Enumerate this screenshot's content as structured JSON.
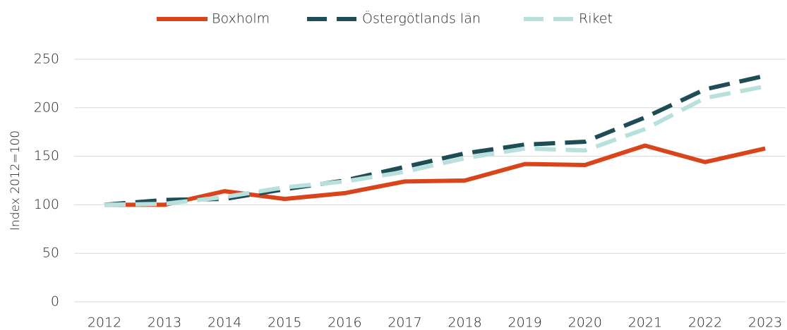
{
  "chart_data": {
    "type": "line",
    "ylabel": "Index 2012=100",
    "categories": [
      "2012",
      "2013",
      "2014",
      "2015",
      "2016",
      "2017",
      "2018",
      "2019",
      "2020",
      "2021",
      "2022",
      "2023"
    ],
    "series": [
      {
        "name": "Boxholm",
        "color": "#d9441a",
        "dash": "solid",
        "values": [
          100,
          100,
          114,
          106,
          112,
          124,
          125,
          142,
          141,
          161,
          144,
          158
        ]
      },
      {
        "name": "Östergötlands län",
        "color": "#1e4d55",
        "dash": "dashed",
        "values": [
          100,
          105,
          106,
          116,
          125,
          139,
          153,
          162,
          165,
          190,
          219,
          233
        ]
      },
      {
        "name": "Riket",
        "color": "#b8e0dc",
        "dash": "dashed",
        "values": [
          100,
          101,
          108,
          118,
          124,
          134,
          148,
          158,
          156,
          178,
          210,
          222
        ]
      }
    ],
    "ylim": [
      0,
      250
    ],
    "yticks": [
      0,
      50,
      100,
      150,
      200,
      250
    ],
    "grid": true,
    "legend": "top"
  }
}
